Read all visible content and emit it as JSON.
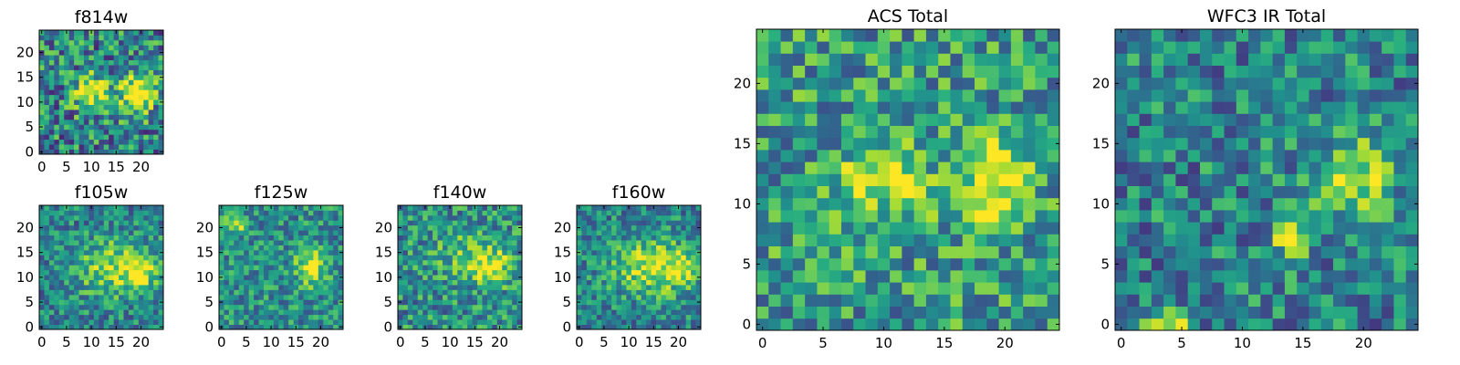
{
  "chart_data": [
    {
      "type": "heatmap",
      "title": "f814w",
      "grid_size": 25,
      "colormap": "viridis",
      "xlim": [
        0,
        24
      ],
      "ylim": [
        0,
        24
      ],
      "xticks": [
        0,
        5,
        10,
        15,
        20
      ],
      "yticks": [
        0,
        5,
        10,
        15,
        20
      ],
      "blobs": [
        {
          "cx": 10,
          "cy": 12,
          "sx": 2.5,
          "sy": 2.5,
          "amp": 0.55
        },
        {
          "cx": 19,
          "cy": 12,
          "sx": 2.5,
          "sy": 3,
          "amp": 0.6
        }
      ],
      "background": 0.45,
      "noise": 0.35,
      "seed": 11
    },
    {
      "type": "heatmap",
      "title": "f105w",
      "grid_size": 25,
      "colormap": "viridis",
      "xlim": [
        0,
        24
      ],
      "ylim": [
        0,
        24
      ],
      "xticks": [
        0,
        5,
        10,
        15,
        20
      ],
      "yticks": [
        0,
        5,
        10,
        15,
        20
      ],
      "blobs": [
        {
          "cx": 15,
          "cy": 12,
          "sx": 6,
          "sy": 4,
          "amp": 0.4
        },
        {
          "cx": 20,
          "cy": 11,
          "sx": 2,
          "sy": 2,
          "amp": 0.35
        }
      ],
      "background": 0.45,
      "noise": 0.25,
      "seed": 23
    },
    {
      "type": "heatmap",
      "title": "f125w",
      "grid_size": 25,
      "colormap": "viridis",
      "xlim": [
        0,
        24
      ],
      "ylim": [
        0,
        24
      ],
      "xticks": [
        0,
        5,
        10,
        15,
        20
      ],
      "yticks": [
        0,
        5,
        10,
        15,
        20
      ],
      "blobs": [
        {
          "cx": 18,
          "cy": 12,
          "sx": 2,
          "sy": 2.5,
          "amp": 0.5
        },
        {
          "cx": 3,
          "cy": 21,
          "sx": 1.5,
          "sy": 1,
          "amp": 0.55
        }
      ],
      "background": 0.5,
      "noise": 0.25,
      "seed": 37
    },
    {
      "type": "heatmap",
      "title": "f140w",
      "grid_size": 25,
      "colormap": "viridis",
      "xlim": [
        0,
        24
      ],
      "ylim": [
        0,
        24
      ],
      "xticks": [
        0,
        5,
        10,
        15,
        20
      ],
      "yticks": [
        0,
        5,
        10,
        15,
        20
      ],
      "blobs": [
        {
          "cx": 18,
          "cy": 12,
          "sx": 3,
          "sy": 2.5,
          "amp": 0.5
        },
        {
          "cx": 12,
          "cy": 15,
          "sx": 4,
          "sy": 3,
          "amp": 0.2
        }
      ],
      "background": 0.5,
      "noise": 0.28,
      "seed": 41
    },
    {
      "type": "heatmap",
      "title": "f160w",
      "grid_size": 25,
      "colormap": "viridis",
      "xlim": [
        0,
        24
      ],
      "ylim": [
        0,
        24
      ],
      "xticks": [
        0,
        5,
        10,
        15,
        20
      ],
      "yticks": [
        0,
        5,
        10,
        15,
        20
      ],
      "blobs": [
        {
          "cx": 15,
          "cy": 12,
          "sx": 6,
          "sy": 4,
          "amp": 0.45
        },
        {
          "cx": 21,
          "cy": 12,
          "sx": 2,
          "sy": 2,
          "amp": 0.35
        }
      ],
      "background": 0.45,
      "noise": 0.25,
      "seed": 53
    },
    {
      "type": "heatmap",
      "title": "ACS Total",
      "grid_size": 25,
      "colormap": "viridis",
      "xlim": [
        0,
        24
      ],
      "ylim": [
        0,
        24
      ],
      "xticks": [
        0,
        5,
        10,
        15,
        20
      ],
      "yticks": [
        0,
        5,
        10,
        15,
        20
      ],
      "blobs": [
        {
          "cx": 10,
          "cy": 12,
          "sx": 2.5,
          "sy": 2,
          "amp": 0.45
        },
        {
          "cx": 19,
          "cy": 12,
          "sx": 1.8,
          "sy": 2.5,
          "amp": 0.6
        }
      ],
      "background": 0.55,
      "noise": 0.3,
      "seed": 67
    },
    {
      "type": "heatmap",
      "title": "WFC3 IR Total",
      "grid_size": 25,
      "colormap": "viridis",
      "xlim": [
        0,
        24
      ],
      "ylim": [
        0,
        24
      ],
      "xticks": [
        0,
        5,
        10,
        15,
        20
      ],
      "yticks": [
        0,
        5,
        10,
        15,
        20
      ],
      "blobs": [
        {
          "cx": 19,
          "cy": 12,
          "sx": 2.5,
          "sy": 2.5,
          "amp": 0.4
        },
        {
          "cx": 14,
          "cy": 7,
          "sx": 1,
          "sy": 1,
          "amp": 0.55
        },
        {
          "cx": 4,
          "cy": 0,
          "sx": 1.2,
          "sy": 0.6,
          "amp": 0.6
        }
      ],
      "background": 0.45,
      "noise": 0.28,
      "seed": 79
    }
  ]
}
